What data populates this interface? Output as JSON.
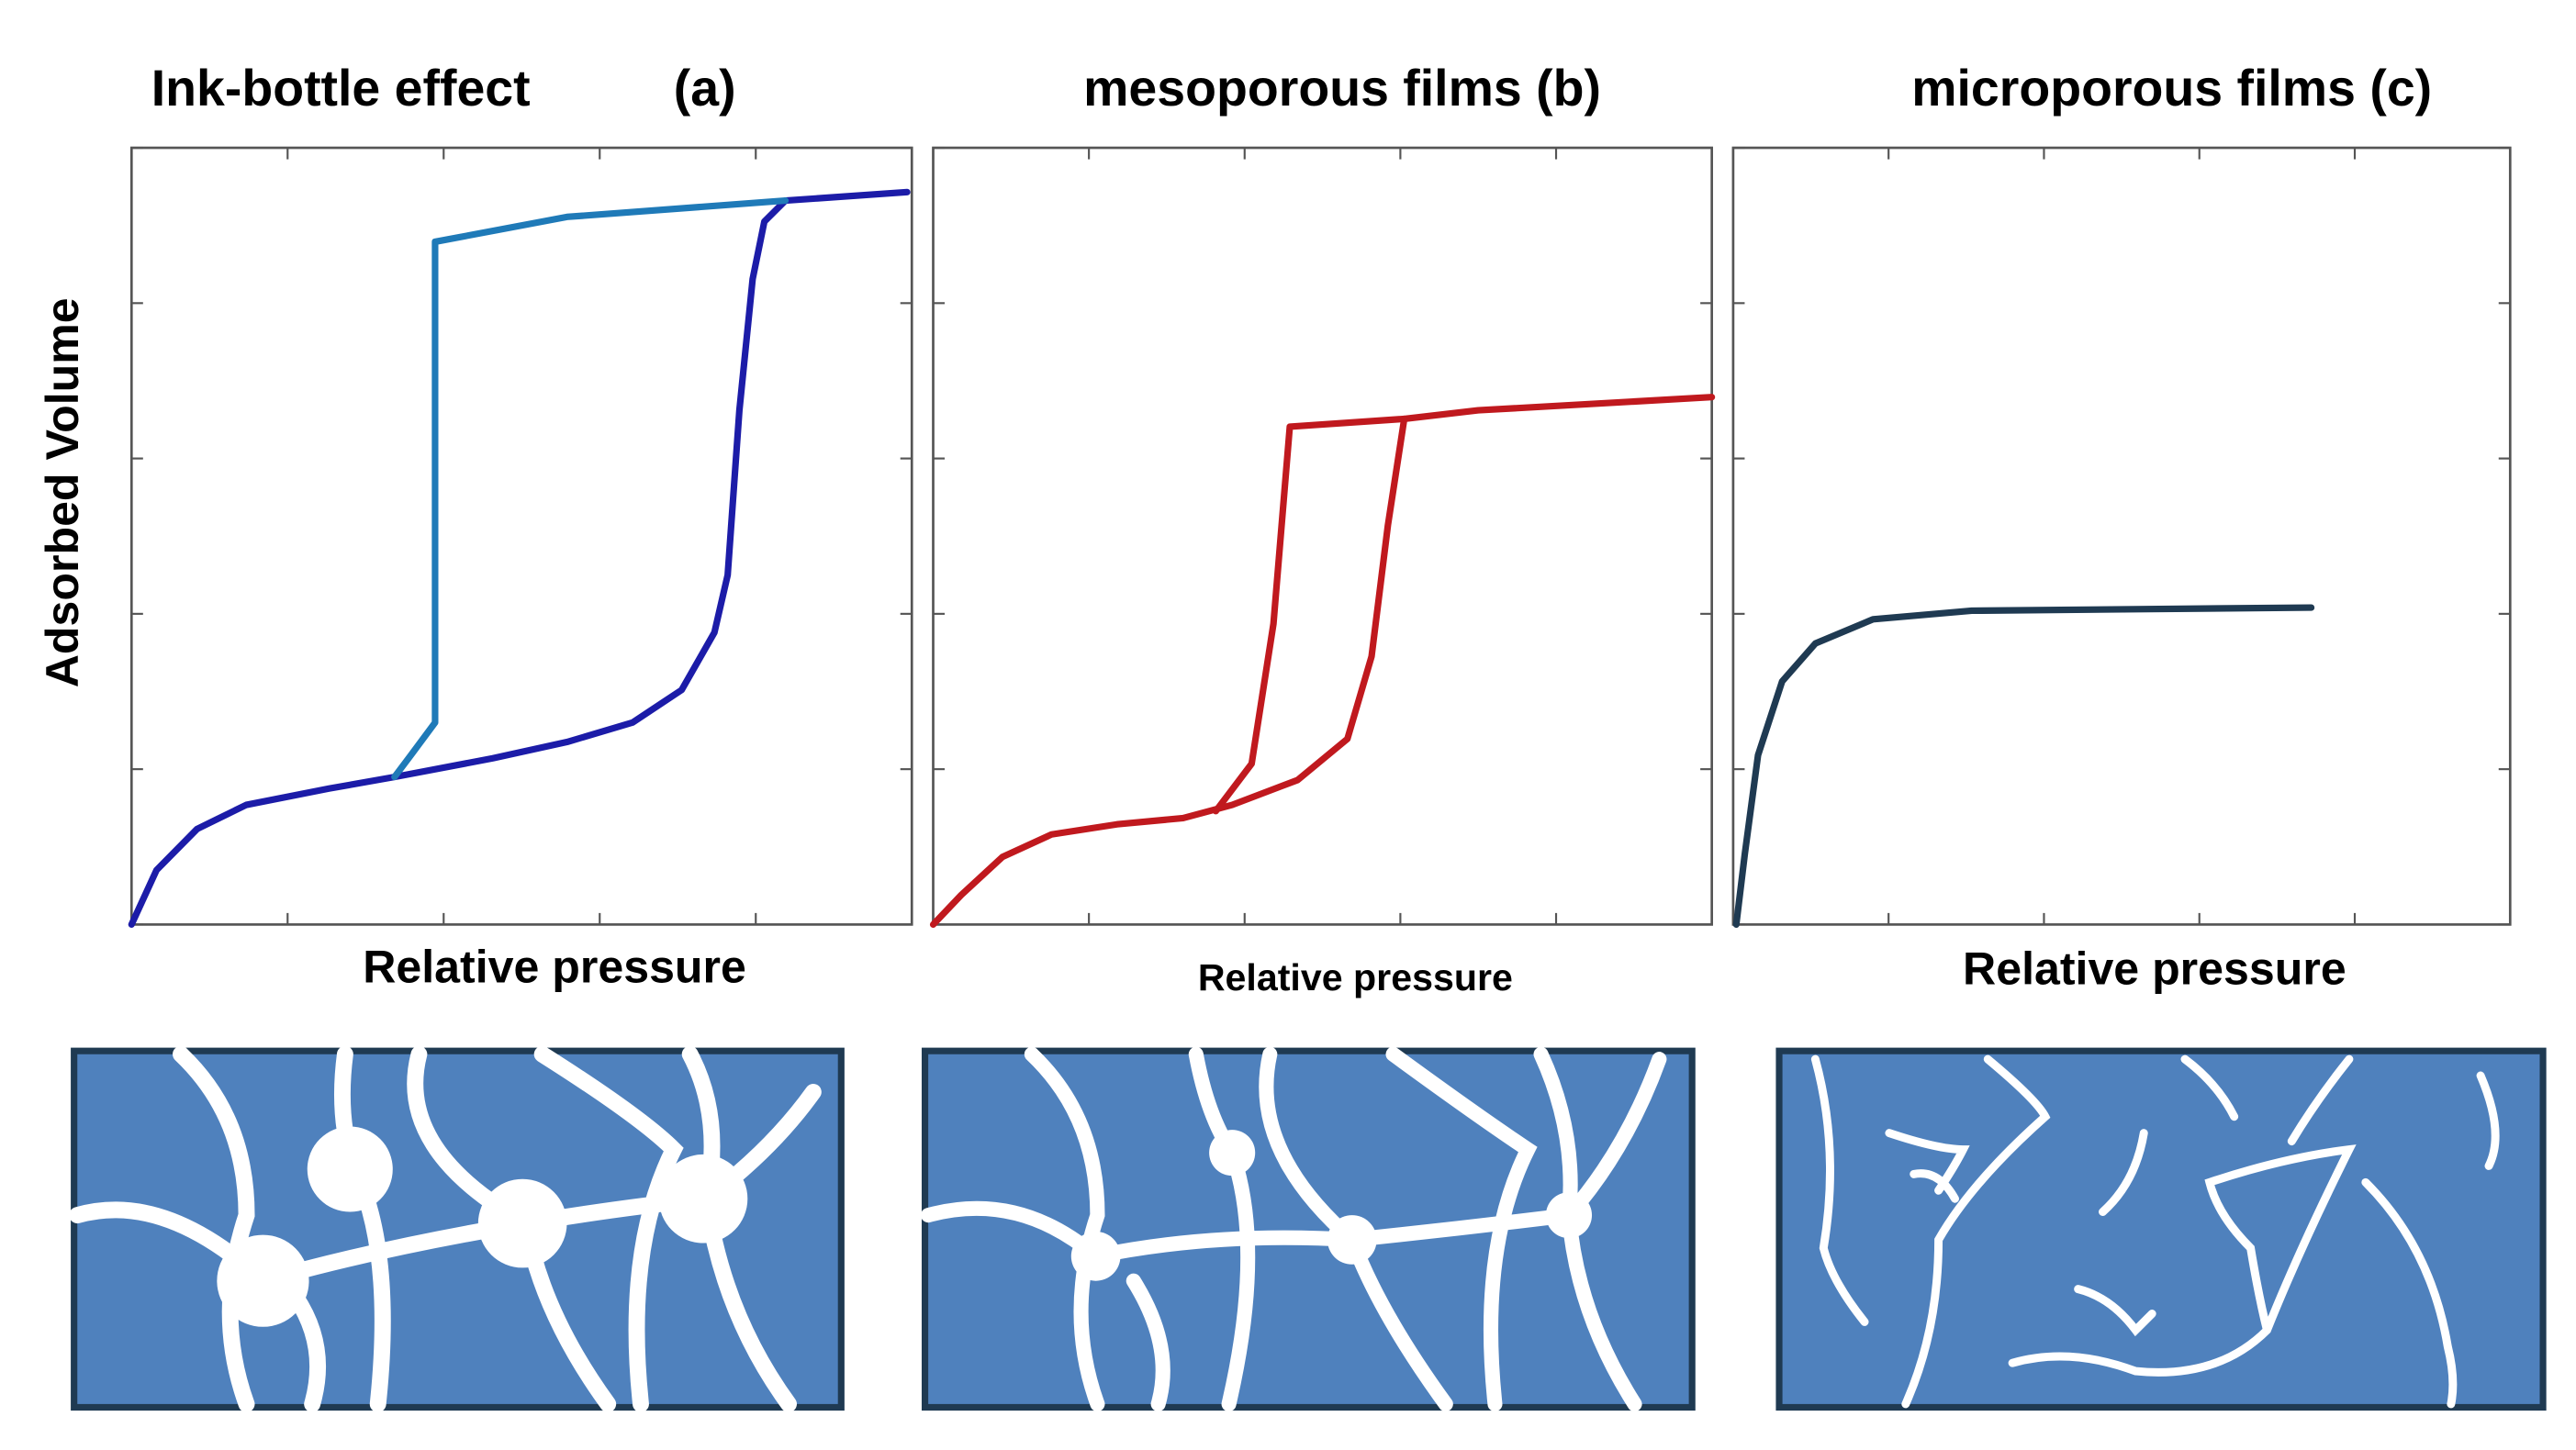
{
  "chart_data": [
    {
      "type": "line",
      "title": "Ink-bottle effect",
      "panel_label": "(a)",
      "xlabel": "Relative pressure",
      "ylabel": "Adsorbed Volume",
      "xlim": [
        0,
        1
      ],
      "ylim": [
        0,
        1
      ],
      "xticks": [
        0,
        0.2,
        0.4,
        0.6,
        0.8,
        1
      ],
      "yticks": [
        0,
        0.2,
        0.4,
        0.6,
        0.8,
        1
      ],
      "series": [
        {
          "color": "#1c1ca8",
          "x": [
            0,
            0.032,
            0.084,
            0.147,
            0.253,
            0.337,
            0.463,
            0.558,
            0.642,
            0.705,
            0.747,
            0.764,
            0.779,
            0.796,
            0.811,
            0.838,
            0.994
          ],
          "values": [
            0,
            0.07,
            0.123,
            0.154,
            0.175,
            0.19,
            0.214,
            0.235,
            0.26,
            0.302,
            0.376,
            0.45,
            0.662,
            0.831,
            0.905,
            0.932,
            0.943
          ]
        },
        {
          "color": "#1f7ab8",
          "x": [
            0.838,
            0.558,
            0.389,
            0.389,
            0.358,
            0.337
          ],
          "values": [
            0.932,
            0.911,
            0.879,
            0.26,
            0.218,
            0.19
          ]
        }
      ]
    },
    {
      "type": "line",
      "title": "mesoporous films (b)",
      "xlabel": "Relative pressure",
      "xlim": [
        0,
        1
      ],
      "ylim": [
        0,
        1
      ],
      "xticks": [
        0,
        0.2,
        0.4,
        0.6,
        0.8,
        1
      ],
      "yticks": [
        0,
        0.2,
        0.4,
        0.6,
        0.8,
        1
      ],
      "series": [
        {
          "color": "#c0191e",
          "x": [
            0,
            0.036,
            0.089,
            0.152,
            0.236,
            0.321,
            0.384,
            0.468,
            0.532,
            0.563,
            0.584,
            0.605,
            0.7,
            1
          ],
          "values": [
            0,
            0.038,
            0.087,
            0.116,
            0.129,
            0.137,
            0.154,
            0.186,
            0.239,
            0.345,
            0.514,
            0.651,
            0.662,
            0.679
          ]
        },
        {
          "color": "#c0191e",
          "x": [
            0.605,
            0.458,
            0.437,
            0.409,
            0.363
          ],
          "values": [
            0.651,
            0.641,
            0.387,
            0.207,
            0.146
          ]
        }
      ]
    },
    {
      "type": "line",
      "title": "microporous films (c)",
      "xlabel": "Relative pressure",
      "xlim": [
        0,
        1
      ],
      "ylim": [
        0,
        1
      ],
      "xticks": [
        0,
        0.2,
        0.4,
        0.6,
        0.8,
        1
      ],
      "yticks": [
        0,
        0.2,
        0.4,
        0.6,
        0.8,
        1
      ],
      "series": [
        {
          "color": "#1f3a52",
          "x": [
            0.004,
            0.015,
            0.032,
            0.063,
            0.106,
            0.18,
            0.307,
            0.518,
            0.744
          ],
          "values": [
            0,
            0.091,
            0.218,
            0.313,
            0.362,
            0.393,
            0.404,
            0.406,
            0.408
          ]
        }
      ]
    }
  ]
}
